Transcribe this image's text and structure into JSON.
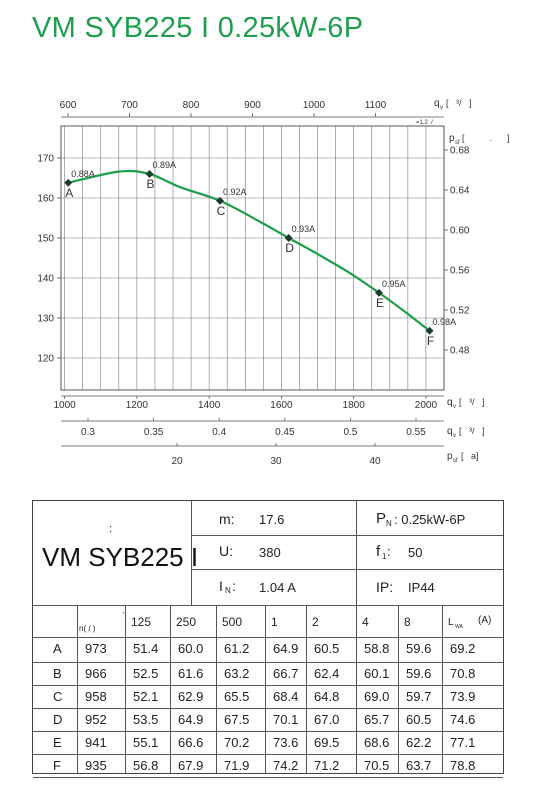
{
  "title": "VM SYB225 I 0.25kW-6P",
  "chart_data": {
    "type": "line",
    "top_axis": {
      "label": "q",
      "sub": "v",
      "unit_hint": "[   ³/   ]",
      "ticks": [
        600,
        700,
        800,
        900,
        1000,
        1100
      ]
    },
    "top_small_note": "=1.2  /",
    "left_axis": {
      "ticks": [
        120,
        130,
        140,
        150,
        160,
        170
      ],
      "range": [
        112,
        178
      ]
    },
    "right_axis": {
      "label": "p",
      "sub": "sf",
      "unit_hint": "[          .      ]",
      "ticks": [
        "0.48",
        "0.52",
        "0.56",
        "0.60",
        "0.64",
        "0.68"
      ]
    },
    "bottom_axis1": {
      "label": "q",
      "sub": "v",
      "unit_hint": "[   ³/   ]",
      "ticks": [
        1000,
        1200,
        1400,
        1600,
        1800,
        2000
      ],
      "range": [
        990,
        2050
      ]
    },
    "bottom_axis2": {
      "label": "q",
      "sub": "v",
      "unit_hint": "[   ³/   ]",
      "ticks": [
        "0.3",
        "0.35",
        "0.4",
        "0.45",
        "0.5",
        "0.55"
      ]
    },
    "bottom_axis3": {
      "label": "p",
      "sub": "sf",
      "unit_hint": "[   a]",
      "ticks": [
        20,
        30,
        40
      ]
    },
    "curve": [
      [
        1010,
        163.8
      ],
      [
        1150,
        166.6
      ],
      [
        1235,
        166.0
      ],
      [
        1320,
        162.7
      ],
      [
        1430,
        159.3
      ],
      [
        1540,
        154.1
      ],
      [
        1620,
        150.0
      ],
      [
        1700,
        146.0
      ],
      [
        1790,
        141.2
      ],
      [
        1870,
        136.3
      ],
      [
        1940,
        131.7
      ],
      [
        2010,
        126.8
      ]
    ],
    "points": [
      {
        "label": "A",
        "current": "0.88A",
        "x": 1010,
        "y": 163.8
      },
      {
        "label": "B",
        "current": "0.89A",
        "x": 1235,
        "y": 166.0
      },
      {
        "label": "C",
        "current": "0.92A",
        "x": 1430,
        "y": 159.3
      },
      {
        "label": "D",
        "current": "0.93A",
        "x": 1620,
        "y": 150.0
      },
      {
        "label": "E",
        "current": "0.95A",
        "x": 1870,
        "y": 136.3
      },
      {
        "label": "F",
        "current": "0.98A",
        "x": 2010,
        "y": 126.8
      }
    ],
    "grid": true,
    "curve_color": "#1e9e4b",
    "marker_color": "#1a3b2a"
  },
  "specs": {
    "colon": ":",
    "model": "VM SYB225 I",
    "m_label": "m:",
    "m_value": "17.6",
    "u_label": "U:",
    "u_value": "380",
    "in_label": "I",
    "in_sub": "N",
    "in_colon": ":",
    "in_value": "1.04  A",
    "pn_label": "P",
    "pn_sub": "N",
    "pn_value": ":  0.25kW-6P",
    "f_label": "f",
    "f_sub": "1",
    "f_colon": ":",
    "f_value": "50",
    "ip_label": "IP:",
    "ip_value": "IP44"
  },
  "table": {
    "header": [
      "n(  /  )",
      "125",
      "250",
      "500",
      "1",
      "2",
      "4",
      "8"
    ],
    "lwa_label": "L",
    "lwa_sub": "WA",
    "lwa_unit": "(A)",
    "tick_mark": "'",
    "rows": [
      {
        "label": "A",
        "values": [
          "973",
          "51.4",
          "60.0",
          "61.2",
          "64.9",
          "60.5",
          "58.8",
          "59.6",
          "69.2"
        ]
      },
      {
        "label": "B",
        "values": [
          "966",
          "52.5",
          "61.6",
          "63.2",
          "66.7",
          "62.4",
          "60.1",
          "59.6",
          "70.8"
        ]
      },
      {
        "label": "C",
        "values": [
          "958",
          "52.1",
          "62.9",
          "65.5",
          "68.4",
          "64.8",
          "69.0",
          "59.7",
          "73.9"
        ]
      },
      {
        "label": "D",
        "values": [
          "952",
          "53.5",
          "64.9",
          "67.5",
          "70.1",
          "67.0",
          "65.7",
          "60.5",
          "74.6"
        ]
      },
      {
        "label": "E",
        "values": [
          "941",
          "55.1",
          "66.6",
          "70.2",
          "73.6",
          "69.5",
          "68.6",
          "62.2",
          "77.1"
        ]
      },
      {
        "label": "F",
        "values": [
          "935",
          "56.8",
          "67.9",
          "71.9",
          "74.2",
          "71.2",
          "70.5",
          "63.7",
          "78.8"
        ]
      }
    ]
  }
}
